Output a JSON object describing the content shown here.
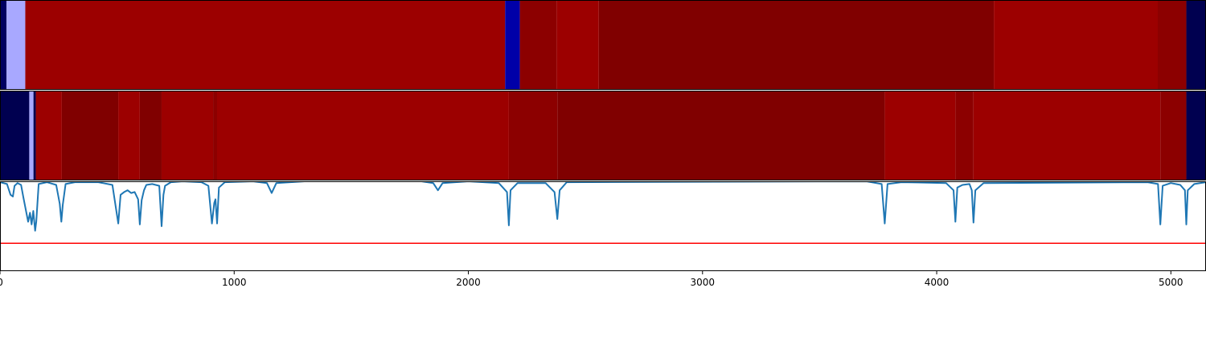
{
  "chart_data": [
    {
      "type": "heatmap",
      "panel": "top-band",
      "xlim": [
        0,
        5150
      ],
      "colormap": "seismic",
      "segments": [
        {
          "x0": 0,
          "x1": 28,
          "color": "#000060"
        },
        {
          "x0": 28,
          "x1": 108,
          "color": "#a8a8ff"
        },
        {
          "x0": 108,
          "x1": 2157,
          "color": "#9c0000"
        },
        {
          "x0": 2157,
          "x1": 2220,
          "color": "#0000a8"
        },
        {
          "x0": 2220,
          "x1": 2377,
          "color": "#8c0000"
        },
        {
          "x0": 2377,
          "x1": 2557,
          "color": "#9c0000"
        },
        {
          "x0": 2557,
          "x1": 4244,
          "color": "#800000"
        },
        {
          "x0": 4244,
          "x1": 4944,
          "color": "#9c0000"
        },
        {
          "x0": 4944,
          "x1": 5066,
          "color": "#8c0000"
        },
        {
          "x0": 5066,
          "x1": 5150,
          "color": "#000050"
        }
      ]
    },
    {
      "type": "heatmap",
      "panel": "middle-band",
      "xlim": [
        0,
        5150
      ],
      "colormap": "seismic",
      "segments": [
        {
          "x0": 0,
          "x1": 125,
          "color": "#000050"
        },
        {
          "x0": 125,
          "x1": 143,
          "color": "#a8a8ff"
        },
        {
          "x0": 143,
          "x1": 153,
          "color": "#000050"
        },
        {
          "x0": 153,
          "x1": 264,
          "color": "#9c0000"
        },
        {
          "x0": 264,
          "x1": 505,
          "color": "#800000"
        },
        {
          "x0": 505,
          "x1": 597,
          "color": "#9c0000"
        },
        {
          "x0": 597,
          "x1": 690,
          "color": "#800000"
        },
        {
          "x0": 690,
          "x1": 910,
          "color": "#9c0000"
        },
        {
          "x0": 910,
          "x1": 927,
          "color": "#8c0000"
        },
        {
          "x0": 927,
          "x1": 2173,
          "color": "#9c0000"
        },
        {
          "x0": 2173,
          "x1": 2380,
          "color": "#8c0000"
        },
        {
          "x0": 2380,
          "x1": 3778,
          "color": "#800000"
        },
        {
          "x0": 3778,
          "x1": 4080,
          "color": "#9c0000"
        },
        {
          "x0": 4080,
          "x1": 4157,
          "color": "#8c0000"
        },
        {
          "x0": 4157,
          "x1": 4955,
          "color": "#9c0000"
        },
        {
          "x0": 4955,
          "x1": 5066,
          "color": "#8c0000"
        },
        {
          "x0": 5066,
          "x1": 5150,
          "color": "#000050"
        }
      ]
    },
    {
      "type": "line",
      "panel": "signal",
      "xlim": [
        0,
        5150
      ],
      "ylim": [
        0,
        1
      ],
      "xticks": [
        0,
        1000,
        2000,
        3000,
        4000,
        5000
      ],
      "xtick_labels": [
        "0",
        "1000",
        "2000",
        "3000",
        "4000",
        "5000"
      ],
      "series": [
        {
          "color": "#1f77b4",
          "x": [
            0,
            30,
            45,
            55,
            62,
            75,
            90,
            100,
            120,
            128,
            135,
            142,
            150,
            155,
            165,
            200,
            240,
            255,
            262,
            268,
            280,
            320,
            420,
            480,
            505,
            515,
            530,
            545,
            560,
            575,
            590,
            597,
            605,
            615,
            625,
            650,
            680,
            690,
            698,
            705,
            730,
            780,
            860,
            890,
            905,
            915,
            920,
            927,
            935,
            960,
            1080,
            1140,
            1160,
            1180,
            1300,
            1800,
            1850,
            1870,
            1890,
            2000,
            2130,
            2165,
            2173,
            2180,
            2210,
            2330,
            2368,
            2380,
            2390,
            2420,
            3700,
            3765,
            3778,
            3790,
            3850,
            4040,
            4072,
            4080,
            4088,
            4110,
            4140,
            4150,
            4157,
            4165,
            4200,
            4900,
            4945,
            4955,
            4965,
            5000,
            5040,
            5060,
            5066,
            5072,
            5100,
            5150
          ],
          "y": [
            0.99,
            0.97,
            0.85,
            0.83,
            0.95,
            0.98,
            0.96,
            0.82,
            0.55,
            0.65,
            0.52,
            0.67,
            0.45,
            0.55,
            0.97,
            0.99,
            0.96,
            0.75,
            0.55,
            0.74,
            0.97,
            0.99,
            0.99,
            0.96,
            0.53,
            0.85,
            0.88,
            0.9,
            0.87,
            0.88,
            0.8,
            0.52,
            0.79,
            0.9,
            0.96,
            0.97,
            0.95,
            0.5,
            0.85,
            0.95,
            0.99,
            1.0,
            0.99,
            0.95,
            0.53,
            0.76,
            0.8,
            0.53,
            0.93,
            0.99,
            1.0,
            0.98,
            0.87,
            0.98,
            1.0,
            1.0,
            0.98,
            0.9,
            0.98,
            1.0,
            0.98,
            0.88,
            0.51,
            0.9,
            0.98,
            0.98,
            0.88,
            0.58,
            0.9,
            0.99,
            1.0,
            0.97,
            0.53,
            0.97,
            0.99,
            0.98,
            0.9,
            0.55,
            0.93,
            0.96,
            0.97,
            0.9,
            0.54,
            0.9,
            0.98,
            0.99,
            0.97,
            0.52,
            0.95,
            0.98,
            0.96,
            0.9,
            0.52,
            0.9,
            0.97,
            0.99
          ]
        },
        {
          "color": "#ff0000",
          "x": [
            0,
            5150
          ],
          "y": [
            0.31,
            0.31
          ]
        }
      ]
    }
  ]
}
